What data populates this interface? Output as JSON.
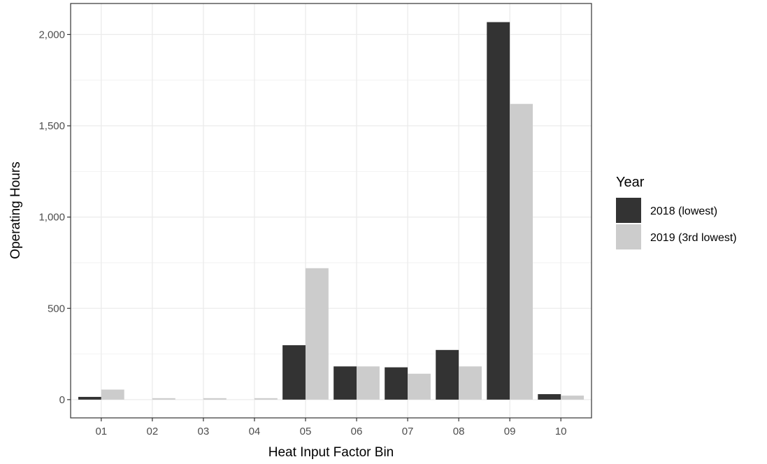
{
  "chart_data": {
    "type": "bar",
    "title": "",
    "xlabel": "Heat Input Factor Bin",
    "ylabel": "Operating Hours",
    "categories": [
      "01",
      "02",
      "03",
      "04",
      "05",
      "06",
      "07",
      "08",
      "09",
      "10"
    ],
    "series": [
      {
        "name": "2018 (lowest)",
        "color": "#333333",
        "values": [
          15,
          0,
          0,
          0,
          298,
          182,
          177,
          272,
          2068,
          30
        ]
      },
      {
        "name": "2019 (3rd lowest)",
        "color": "#cccccc",
        "values": [
          55,
          8,
          8,
          8,
          720,
          182,
          142,
          182,
          1620,
          22
        ]
      }
    ],
    "ylim": [
      -100,
      2170
    ],
    "yticks": [
      0,
      500,
      1000,
      1500,
      2000
    ],
    "ytick_labels": [
      "0",
      "500",
      "1,000",
      "1,500",
      "2,000"
    ],
    "grid": true,
    "legend": {
      "title": "Year",
      "position": "right"
    }
  }
}
